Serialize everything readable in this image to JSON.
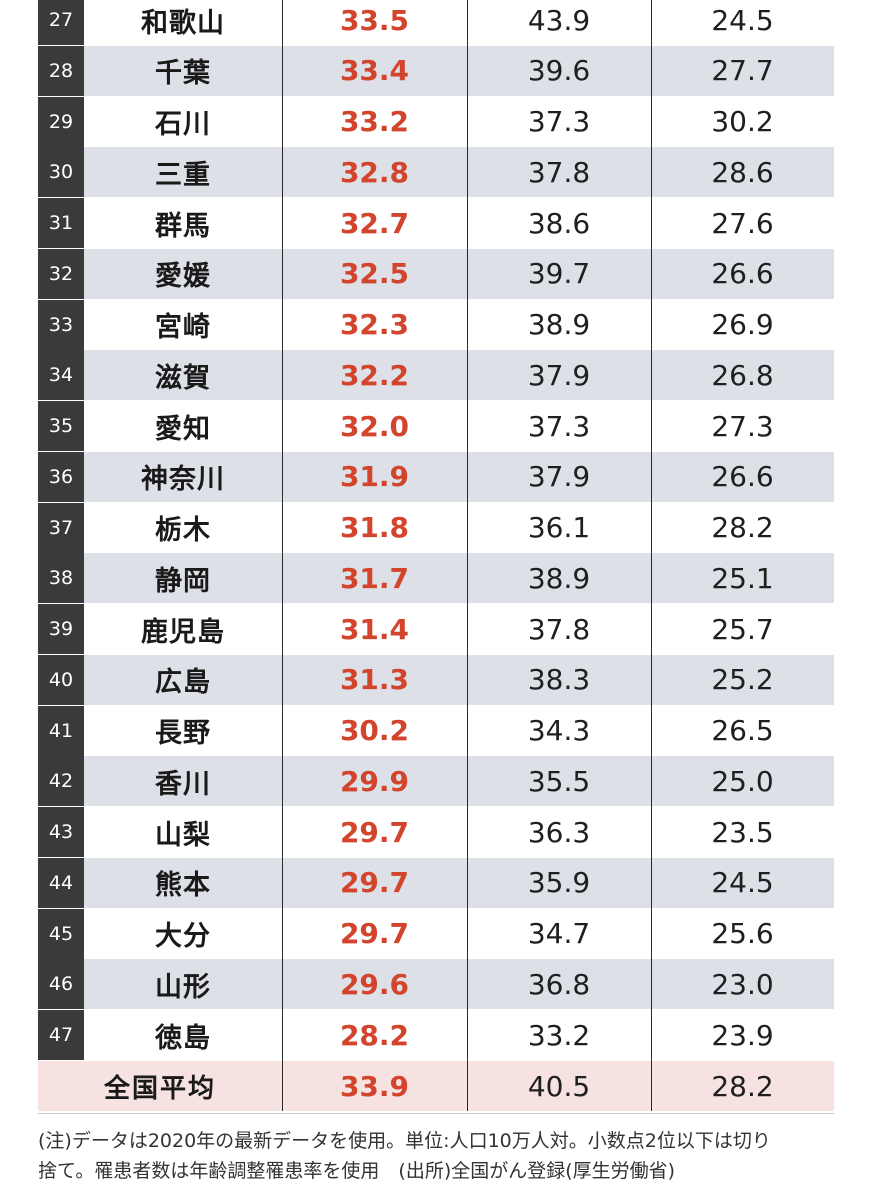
{
  "rows": [
    {
      "rank": "27",
      "pref": "和歌山",
      "v1": "33.5",
      "v2": "43.9",
      "v3": "24.5"
    },
    {
      "rank": "28",
      "pref": "千葉",
      "v1": "33.4",
      "v2": "39.6",
      "v3": "27.7"
    },
    {
      "rank": "29",
      "pref": "石川",
      "v1": "33.2",
      "v2": "37.3",
      "v3": "30.2"
    },
    {
      "rank": "30",
      "pref": "三重",
      "v1": "32.8",
      "v2": "37.8",
      "v3": "28.6"
    },
    {
      "rank": "31",
      "pref": "群馬",
      "v1": "32.7",
      "v2": "38.6",
      "v3": "27.6"
    },
    {
      "rank": "32",
      "pref": "愛媛",
      "v1": "32.5",
      "v2": "39.7",
      "v3": "26.6"
    },
    {
      "rank": "33",
      "pref": "宮崎",
      "v1": "32.3",
      "v2": "38.9",
      "v3": "26.9"
    },
    {
      "rank": "34",
      "pref": "滋賀",
      "v1": "32.2",
      "v2": "37.9",
      "v3": "26.8"
    },
    {
      "rank": "35",
      "pref": "愛知",
      "v1": "32.0",
      "v2": "37.3",
      "v3": "27.3"
    },
    {
      "rank": "36",
      "pref": "神奈川",
      "v1": "31.9",
      "v2": "37.9",
      "v3": "26.6"
    },
    {
      "rank": "37",
      "pref": "栃木",
      "v1": "31.8",
      "v2": "36.1",
      "v3": "28.2"
    },
    {
      "rank": "38",
      "pref": "静岡",
      "v1": "31.7",
      "v2": "38.9",
      "v3": "25.1"
    },
    {
      "rank": "39",
      "pref": "鹿児島",
      "v1": "31.4",
      "v2": "37.8",
      "v3": "25.7"
    },
    {
      "rank": "40",
      "pref": "広島",
      "v1": "31.3",
      "v2": "38.3",
      "v3": "25.2"
    },
    {
      "rank": "41",
      "pref": "長野",
      "v1": "30.2",
      "v2": "34.3",
      "v3": "26.5"
    },
    {
      "rank": "42",
      "pref": "香川",
      "v1": "29.9",
      "v2": "35.5",
      "v3": "25.0"
    },
    {
      "rank": "43",
      "pref": "山梨",
      "v1": "29.7",
      "v2": "36.3",
      "v3": "23.5"
    },
    {
      "rank": "44",
      "pref": "熊本",
      "v1": "29.7",
      "v2": "35.9",
      "v3": "24.5"
    },
    {
      "rank": "45",
      "pref": "大分",
      "v1": "29.7",
      "v2": "34.7",
      "v3": "25.6"
    },
    {
      "rank": "46",
      "pref": "山形",
      "v1": "29.6",
      "v2": "36.8",
      "v3": "23.0"
    },
    {
      "rank": "47",
      "pref": "徳島",
      "v1": "28.2",
      "v2": "33.2",
      "v3": "23.9"
    }
  ],
  "average": {
    "label": "全国平均",
    "v1": "33.9",
    "v2": "40.5",
    "v3": "28.2"
  },
  "note": {
    "line1": "(注)データは2020年の最新データを使用。単位:人口10万人対。小数点2位以下は切り",
    "line2": "捨て。罹患者数は年齢調整罹患率を使用　(出所)全国がん登録(厚生労働省)"
  }
}
